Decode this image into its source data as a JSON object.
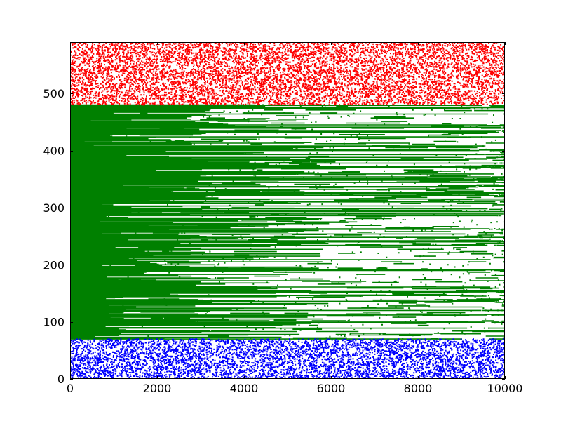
{
  "chart_data": {
    "type": "scatter",
    "title": "",
    "xlabel": "",
    "ylabel": "",
    "xlim": [
      0,
      10000
    ],
    "ylim": [
      0,
      590
    ],
    "x_ticks": [
      0,
      2000,
      4000,
      6000,
      8000,
      10000
    ],
    "y_ticks": [
      0,
      100,
      200,
      300,
      400,
      500
    ],
    "x_tick_labels": [
      "0",
      "2000",
      "4000",
      "6000",
      "8000",
      "10000"
    ],
    "y_tick_labels": [
      "0",
      "100",
      "200",
      "300",
      "400",
      "500"
    ],
    "grid": false,
    "legend": "none",
    "series": [
      {
        "name": "blue",
        "color": "#0000ff",
        "kind": "uniform-random-band",
        "y_range": [
          0,
          70
        ],
        "x_range": [
          0,
          10000
        ],
        "approx_points": 5200
      },
      {
        "name": "green",
        "color": "#008000",
        "kind": "horizontal-runs-per-row",
        "y_range": [
          70,
          480
        ],
        "x_range": [
          0,
          10000
        ],
        "note": "one row per integer y; runs dense near x=0 and thinning toward x=10000"
      },
      {
        "name": "red",
        "color": "#ff0000",
        "kind": "uniform-random-band",
        "y_range": [
          480,
          590
        ],
        "x_range": [
          0,
          10000
        ],
        "approx_points": 7800
      }
    ]
  }
}
